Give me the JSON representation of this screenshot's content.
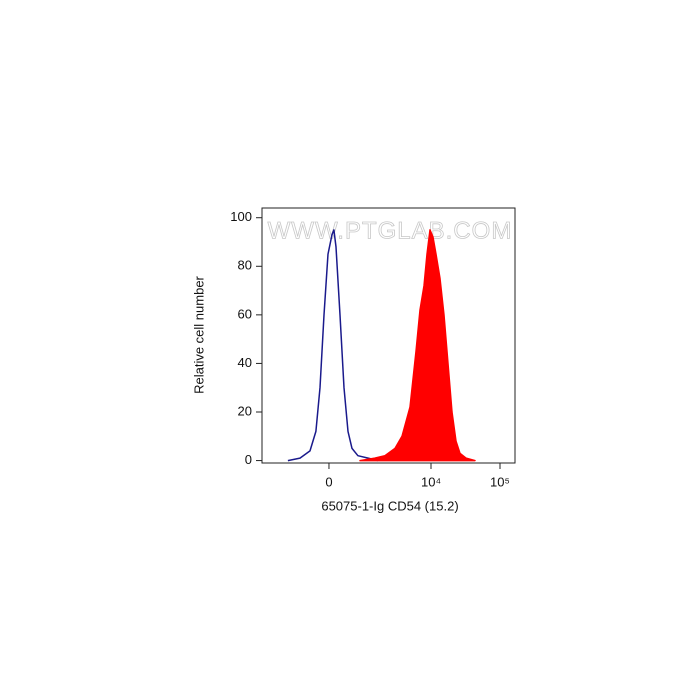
{
  "chart_data": {
    "type": "area",
    "watermark": "WWW.PTGLAB.COM",
    "x_label": "65075-1-Ig CD54 (15.2)",
    "y_label": "Relative cell number",
    "xscale": "biexponential",
    "xlim": [
      -3070,
      165000
    ],
    "xticks": [
      0,
      {
        "value": 10000,
        "label": "10⁴"
      },
      {
        "value": 100000,
        "label": "10⁵"
      }
    ],
    "ylim": [
      -1,
      104
    ],
    "yticks": [
      0,
      20,
      40,
      60,
      80,
      100
    ],
    "series": [
      {
        "color": "#1a1a8c",
        "style": "line",
        "x": [
          -1222,
          -747,
          -450,
          -298,
          -203,
          -111,
          -22,
          67,
          111,
          157,
          250,
          347,
          450,
          562,
          747,
          1135,
          1642
        ],
        "values": [
          0,
          1,
          4,
          12,
          30,
          60,
          85,
          93,
          95,
          88,
          60,
          30,
          12,
          5,
          2,
          1,
          0
        ]
      },
      {
        "color": "#ff0000",
        "style": "fill",
        "x": [
          820,
          1467,
          2101,
          2971,
          3771,
          4941,
          6045,
          6916,
          7907,
          8738,
          9662,
          10687,
          11817,
          13506,
          15435,
          17642,
          20163,
          23036,
          26321,
          32166,
          43425
        ],
        "values": [
          0,
          1,
          2,
          5,
          10,
          22,
          45,
          62,
          72,
          85,
          95,
          92,
          85,
          75,
          60,
          40,
          20,
          8,
          3,
          1,
          0
        ]
      }
    ]
  }
}
